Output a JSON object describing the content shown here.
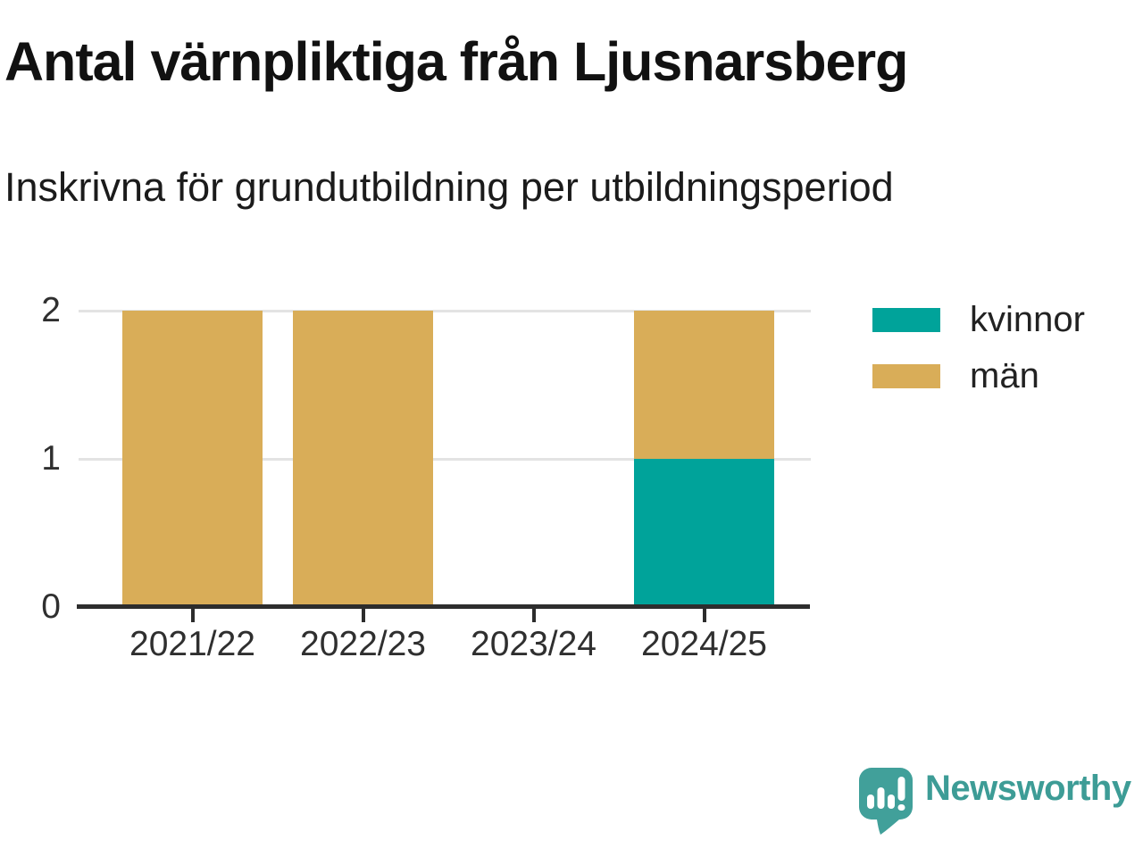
{
  "header": {
    "title": "Antal värnpliktiga från Ljusnarsberg",
    "subtitle": "Inskrivna för grundutbildning per utbildningsperiod"
  },
  "chart_data": {
    "type": "bar",
    "stacked": true,
    "title": "Antal värnpliktiga från Ljusnarsberg",
    "subtitle": "Inskrivna för grundutbildning per utbildningsperiod",
    "categories": [
      "2021/22",
      "2022/23",
      "2023/24",
      "2024/25"
    ],
    "series": [
      {
        "name": "kvinnor",
        "color": "#00a39a",
        "values": [
          0,
          0,
          0,
          1
        ]
      },
      {
        "name": "män",
        "color": "#d9ad58",
        "values": [
          2,
          2,
          0,
          1
        ]
      }
    ],
    "ylim": [
      0,
      2
    ],
    "yticks": [
      0,
      1,
      2
    ],
    "grid": "horizontal",
    "legend_position": "right",
    "axis_color": "#2d2d2d",
    "grid_color": "#e3e3e3"
  },
  "footer": {
    "brand_name": "Newsworthy",
    "brand_color": "#3d9c96",
    "logo_color": "#41a09a"
  }
}
